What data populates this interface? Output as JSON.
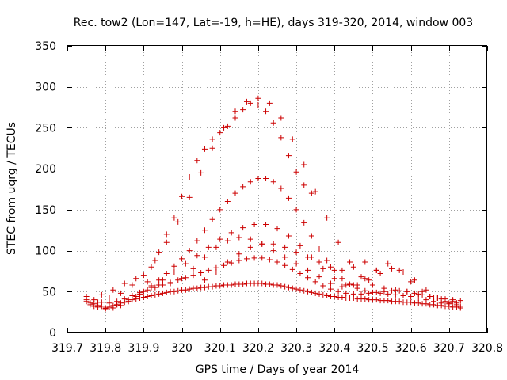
{
  "chart_data": {
    "type": "scatter",
    "title": "Rec. tow2 (Lon=147, Lat=-19, h=HE), days 319-320, 2014, window 003",
    "xlabel": "GPS time / Days of year 2014",
    "ylabel": "STEC from uqrg / TECUs",
    "xlim": [
      319.7,
      320.8
    ],
    "ylim": [
      0,
      350
    ],
    "xticks": [
      "319.7",
      "319.8",
      "319.9",
      "320",
      "320.1",
      "320.2",
      "320.3",
      "320.4",
      "320.5",
      "320.6",
      "320.7",
      "320.8"
    ],
    "yticks": [
      "0",
      "50",
      "100",
      "150",
      "200",
      "250",
      "300",
      "350"
    ],
    "grid": true,
    "marker": "plus",
    "color": "#cc0000",
    "series": [
      {
        "x": [
          319.75,
          319.76,
          319.77,
          319.78,
          319.79,
          319.8,
          319.81,
          319.82,
          319.83,
          319.84,
          319.85,
          319.86,
          319.87,
          319.88,
          319.89,
          319.9,
          319.91,
          319.92,
          319.93,
          319.94,
          319.95,
          319.96,
          319.97,
          319.98,
          319.99,
          320.0,
          320.01,
          320.02,
          320.03,
          320.04,
          320.05,
          320.06,
          320.07,
          320.08,
          320.09,
          320.1,
          320.11,
          320.12,
          320.13,
          320.14,
          320.15,
          320.16,
          320.17,
          320.18,
          320.19,
          320.2,
          320.21,
          320.22,
          320.23,
          320.24,
          320.25,
          320.26,
          320.27,
          320.28,
          320.29,
          320.3,
          320.31,
          320.32,
          320.33,
          320.34,
          320.35,
          320.36,
          320.37,
          320.38,
          320.39,
          320.4,
          320.41,
          320.42,
          320.43,
          320.44,
          320.45,
          320.46,
          320.47,
          320.48,
          320.49,
          320.5,
          320.51,
          320.52,
          320.53,
          320.54,
          320.55,
          320.56,
          320.57,
          320.58,
          320.59,
          320.6,
          320.61,
          320.62,
          320.63,
          320.64,
          320.65,
          320.66,
          320.67,
          320.68,
          320.69,
          320.7,
          320.71,
          320.72,
          320.73
        ],
        "y": [
          38,
          36,
          35,
          33,
          32,
          30,
          31,
          33,
          34,
          36,
          37,
          38,
          40,
          41,
          42,
          43,
          44,
          45,
          46,
          47,
          48,
          49,
          50,
          50,
          51,
          52,
          52,
          53,
          54,
          54,
          55,
          55,
          56,
          56,
          57,
          57,
          58,
          58,
          58,
          59,
          59,
          59,
          60,
          60,
          60,
          60,
          60,
          59,
          59,
          58,
          58,
          57,
          56,
          55,
          54,
          53,
          52,
          51,
          50,
          49,
          48,
          47,
          46,
          45,
          44,
          44,
          43,
          43,
          42,
          42,
          42,
          41,
          41,
          41,
          40,
          40,
          40,
          39,
          39,
          39,
          38,
          38,
          38,
          37,
          37,
          37,
          36,
          36,
          35,
          35,
          34,
          34,
          33,
          33,
          32,
          32,
          31,
          31,
          30
        ]
      },
      {
        "x": [
          319.75,
          319.77,
          319.79,
          319.81,
          319.83,
          319.85,
          319.87,
          319.89,
          319.91,
          319.93,
          319.95,
          319.97,
          319.99,
          320.01,
          320.03,
          320.05,
          320.07,
          320.09,
          320.11,
          320.13,
          320.15,
          320.17,
          320.19,
          320.21,
          320.23,
          320.25,
          320.27,
          320.29,
          320.31,
          320.33,
          320.35,
          320.37,
          320.39,
          320.41,
          320.43,
          320.45,
          320.47,
          320.49,
          320.51,
          320.53,
          320.55,
          320.57,
          320.59,
          320.61,
          320.63,
          320.65,
          320.67,
          320.69,
          320.71,
          320.73
        ],
        "y": [
          44,
          40,
          37,
          36,
          38,
          41,
          45,
          49,
          52,
          55,
          58,
          61,
          64,
          67,
          70,
          73,
          76,
          79,
          82,
          85,
          88,
          90,
          91,
          91,
          89,
          86,
          82,
          77,
          72,
          67,
          62,
          57,
          53,
          50,
          48,
          47,
          47,
          48,
          49,
          50,
          51,
          51,
          50,
          48,
          46,
          44,
          42,
          41,
          40,
          39
        ]
      },
      {
        "x": [
          319.76,
          319.78,
          319.8,
          319.82,
          319.84,
          319.86,
          319.88,
          319.9,
          319.92,
          319.94,
          319.96,
          319.98,
          320.0,
          320.02,
          320.04,
          320.06,
          320.08,
          320.1,
          320.12,
          320.14,
          320.16,
          320.18,
          320.2,
          320.22,
          320.24,
          320.26,
          320.28,
          320.3,
          320.32,
          320.34,
          320.36,
          320.38,
          320.4,
          320.42,
          320.44,
          320.46,
          320.48,
          320.5,
          320.52,
          320.54,
          320.56,
          320.58,
          320.6,
          320.62,
          320.64,
          320.66,
          320.68,
          320.7,
          320.72
        ],
        "y": [
          34,
          31,
          29,
          30,
          33,
          38,
          44,
          50,
          57,
          64,
          72,
          81,
          90,
          100,
          112,
          125,
          138,
          150,
          160,
          170,
          178,
          184,
          188,
          188,
          184,
          176,
          164,
          150,
          134,
          118,
          102,
          88,
          76,
          66,
          59,
          54,
          51,
          49,
          48,
          47,
          46,
          45,
          44,
          42,
          40,
          38,
          36,
          35,
          34
        ]
      },
      {
        "x": [
          319.75,
          319.78,
          319.81,
          319.84,
          319.87,
          319.9,
          319.93,
          319.96,
          319.99,
          320.02,
          320.05,
          320.08,
          320.11,
          320.14,
          320.17,
          320.2,
          320.23,
          320.26,
          320.29,
          320.32,
          320.35,
          320.38,
          320.41,
          320.44,
          320.47,
          320.5,
          320.53,
          320.56,
          320.59,
          320.62,
          320.65,
          320.68,
          320.71
        ],
        "y": [
          40,
          37,
          42,
          48,
          58,
          70,
          88,
          110,
          135,
          165,
          195,
          225,
          250,
          270,
          282,
          286,
          280,
          262,
          236,
          205,
          172,
          140,
          110,
          86,
          68,
          58,
          54,
          52,
          50,
          47,
          44,
          41,
          38
        ]
      },
      {
        "x": [
          319.77,
          319.8,
          319.83,
          319.86,
          319.89,
          319.92,
          319.95,
          319.98,
          320.01,
          320.04,
          320.07,
          320.1,
          320.13,
          320.16,
          320.19,
          320.22,
          320.25,
          320.28,
          320.31,
          320.34,
          320.37,
          320.4,
          320.43,
          320.46,
          320.49,
          320.52,
          320.55,
          320.58,
          320.61,
          320.64,
          320.67,
          320.7,
          320.73
        ],
        "y": [
          32,
          30,
          34,
          40,
          47,
          55,
          64,
          74,
          84,
          94,
          104,
          114,
          122,
          128,
          132,
          132,
          127,
          118,
          106,
          92,
          78,
          66,
          58,
          58,
          64,
          72,
          78,
          74,
          64,
          52,
          42,
          36,
          32
        ]
      },
      {
        "x": [
          319.79,
          319.82,
          319.85,
          319.88,
          319.91,
          319.94,
          319.97,
          320.0,
          320.03,
          320.06,
          320.09,
          320.12,
          320.15,
          320.18,
          320.21,
          320.24,
          320.27,
          320.3,
          320.33,
          320.36,
          320.39,
          320.42,
          320.45,
          320.48,
          320.51,
          320.54,
          320.57,
          320.6,
          320.63,
          320.66,
          320.69,
          320.72
        ],
        "y": [
          46,
          52,
          60,
          66,
          62,
          58,
          60,
          66,
          78,
          92,
          104,
          112,
          116,
          114,
          108,
          100,
          92,
          84,
          76,
          68,
          60,
          56,
          58,
          66,
          76,
          84,
          76,
          62,
          50,
          42,
          38,
          36
        ]
      },
      {
        "x": [
          319.92,
          319.94,
          319.96,
          319.98,
          320.0,
          320.02,
          320.04,
          320.06,
          320.08,
          320.1,
          320.12,
          320.14,
          320.16,
          320.18,
          320.2,
          320.22,
          320.24,
          320.26,
          320.28,
          320.3,
          320.32,
          320.34
        ],
        "y": [
          80,
          98,
          120,
          140,
          166,
          190,
          210,
          224,
          236,
          244,
          252,
          262,
          272,
          280,
          278,
          270,
          256,
          238,
          216,
          196,
          180,
          170
        ]
      },
      {
        "x": [
          320.06,
          320.09,
          320.12,
          320.15,
          320.18,
          320.21,
          320.24,
          320.27,
          320.3,
          320.33,
          320.36,
          320.39,
          320.42,
          320.45,
          320.48,
          320.51
        ],
        "y": [
          64,
          74,
          86,
          96,
          104,
          108,
          108,
          104,
          98,
          92,
          86,
          80,
          76,
          80,
          86,
          76
        ]
      }
    ]
  }
}
